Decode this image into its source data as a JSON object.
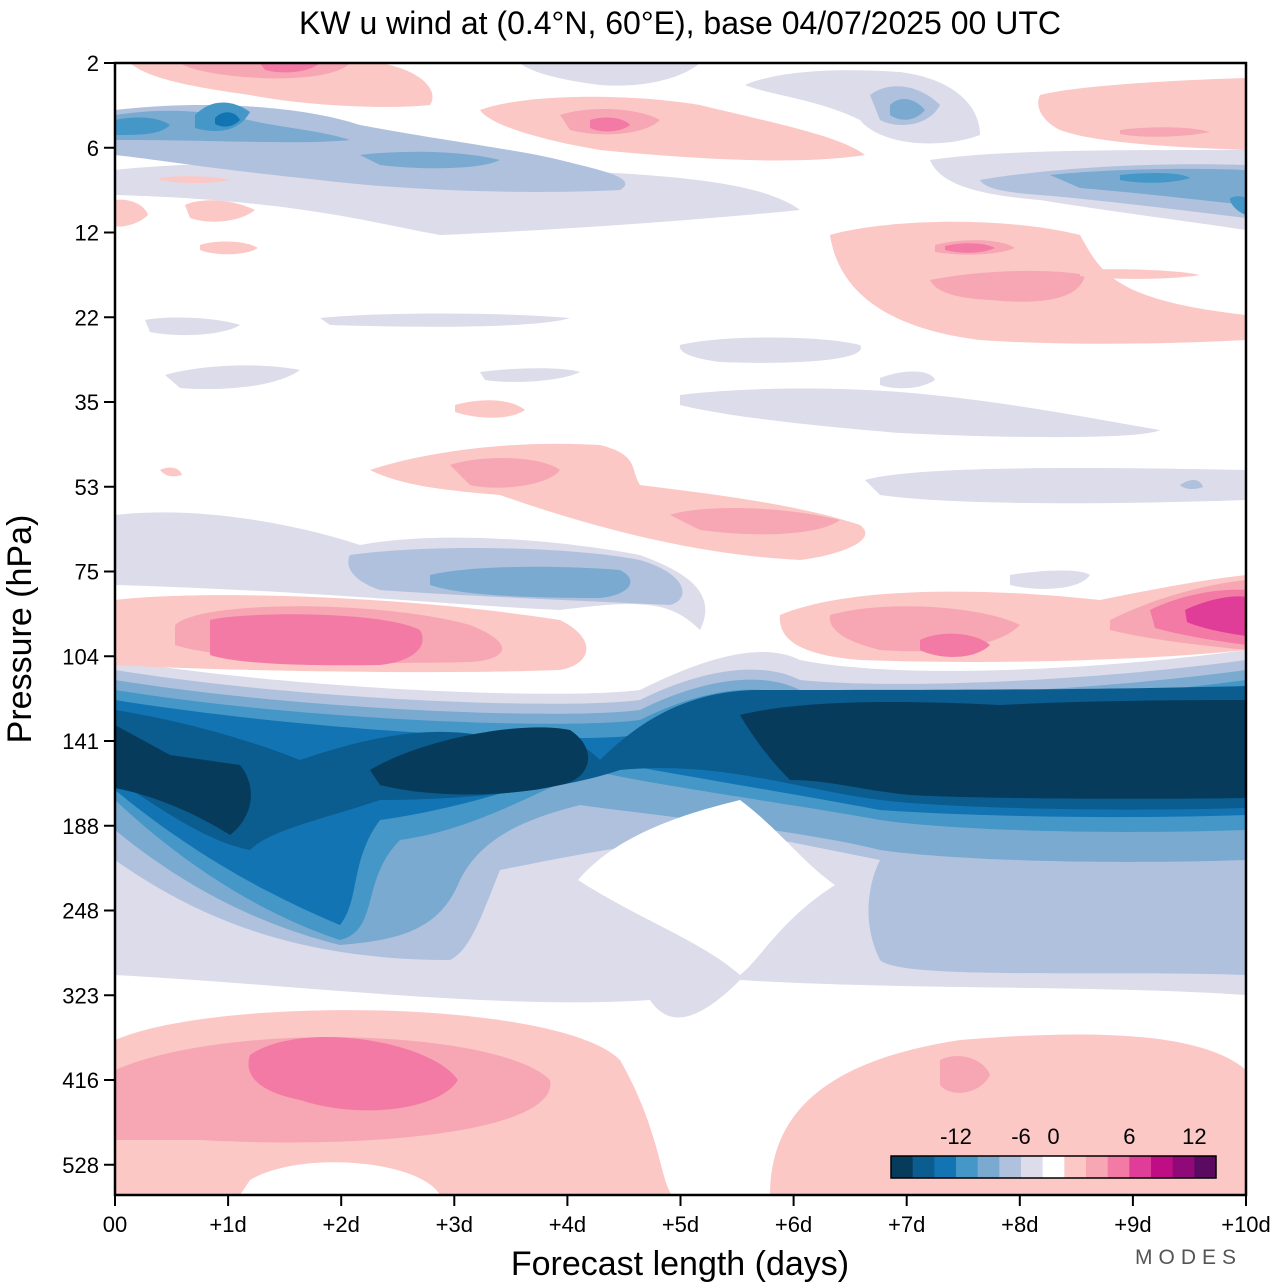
{
  "chart_data": {
    "type": "heatmap",
    "title": "KW u wind at (0.4°N, 60°E),  base 04/07/2025  00 UTC",
    "xlabel": "Forecast length (days)",
    "ylabel": "Pressure (hPa)",
    "x_ticks": [
      "00",
      "+1d",
      "+2d",
      "+3d",
      "+4d",
      "+5d",
      "+6d",
      "+7d",
      "+8d",
      "+9d",
      "+10d"
    ],
    "y_ticks": [
      "2",
      "6",
      "12",
      "22",
      "35",
      "53",
      "75",
      "104",
      "141",
      "188",
      "248",
      "323",
      "416",
      "528"
    ],
    "xlim_days": [
      0,
      10
    ],
    "y_scale": "log-pressure",
    "colorbar": {
      "tick_labels": [
        "-12",
        "-6",
        "0",
        "6",
        "12"
      ],
      "levels": [
        -16,
        -14,
        -12,
        -10,
        -8,
        -6,
        -4,
        -2,
        2,
        4,
        6,
        8,
        10,
        12,
        14,
        16
      ],
      "colors": [
        "#073b5c",
        "#0b5c8f",
        "#1274b2",
        "#4497c7",
        "#7aaad0",
        "#b0c1de",
        "#dcdcea",
        "#ffffff",
        "#fbc8c6",
        "#f7a7b4",
        "#f47aa6",
        "#df3d98",
        "#bf0d85",
        "#8f0a78",
        "#5b0a62"
      ],
      "placement": "bottom-right"
    },
    "features": [
      {
        "label": "easterly jet core",
        "day_range": [
          0,
          10
        ],
        "pressure_range_hPa": [
          120,
          200
        ],
        "u_ms": -16
      },
      {
        "label": "easterly layer",
        "day_range": [
          0,
          10
        ],
        "pressure_range_hPa": [
          110,
          330
        ],
        "u_ms": -4
      },
      {
        "label": "westerly band",
        "day_range": [
          0,
          10
        ],
        "pressure_range_hPa": [
          85,
          110
        ],
        "u_ms": 8
      },
      {
        "label": "westerly lower troposphere",
        "day_range": [
          0,
          5
        ],
        "pressure_range_hPa": [
          350,
          560
        ],
        "u_ms": 6
      },
      {
        "label": "westerly lower troposphere",
        "day_range": [
          5.8,
          10
        ],
        "pressure_range_hPa": [
          360,
          560
        ],
        "u_ms": 4
      },
      {
        "label": "easterly band",
        "day_range": [
          2,
          5.5
        ],
        "pressure_range_hPa": [
          62,
          90
        ],
        "u_ms": -6
      },
      {
        "label": "westerly band",
        "day_range": [
          2.3,
          7
        ],
        "pressure_range_hPa": [
          42,
          65
        ],
        "u_ms": 4
      },
      {
        "label": "easterly upper stratosphere",
        "day_range": [
          0,
          10
        ],
        "pressure_range_hPa": [
          4,
          10
        ],
        "u_ms": -4
      },
      {
        "label": "westerly band",
        "day_range": [
          6.5,
          10
        ],
        "pressure_range_hPa": [
          11,
          26
        ],
        "u_ms": 4
      }
    ]
  },
  "branding": {
    "text": "MODES"
  }
}
